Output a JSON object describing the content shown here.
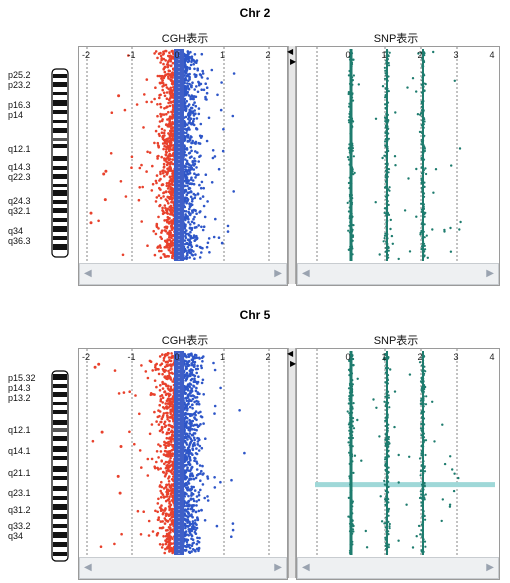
{
  "colors": {
    "cgh_loss": "#e8412c",
    "cgh_gain": "#2e56c8",
    "cgh_center": "#3f5fc7",
    "snp_green": "#1e7c6e",
    "highlight_band": "#9fd8d8",
    "gridline": "#666666"
  },
  "panels": [
    {
      "id": "chr2",
      "title": "Chr 2",
      "cgh_title": "CGH表示",
      "snp_title": "SNP表示",
      "cgh_ticks": [
        "-2",
        "-1",
        "0",
        "1",
        "2"
      ],
      "snp_ticks": [
        "0",
        "1",
        "2",
        "3",
        "4"
      ],
      "bands": [
        "p25.2",
        "p23.2",
        "p16.3",
        "p14",
        "q12.1",
        "q14.3",
        "q22.3",
        "q24.3",
        "q32.1",
        "q34",
        "q36.3"
      ],
      "highlight": false
    },
    {
      "id": "chr5",
      "title": "Chr 5",
      "cgh_title": "CGH表示",
      "snp_title": "SNP表示",
      "cgh_ticks": [
        "-2",
        "-1",
        "0",
        "1",
        "2"
      ],
      "snp_ticks": [
        "0",
        "1",
        "2",
        "3",
        "4"
      ],
      "bands": [
        "p15.32",
        "p14.3",
        "p13.2",
        "q12.1",
        "q14.1",
        "q21.1",
        "q23.1",
        "q31.2",
        "q33.2",
        "q34"
      ],
      "highlight": true
    }
  ],
  "icons": {
    "scroll_left": "scroll-left-icon",
    "scroll_right": "scroll-right-icon",
    "collapse_left": "collapse-left-icon",
    "collapse_right": "collapse-right-icon"
  }
}
